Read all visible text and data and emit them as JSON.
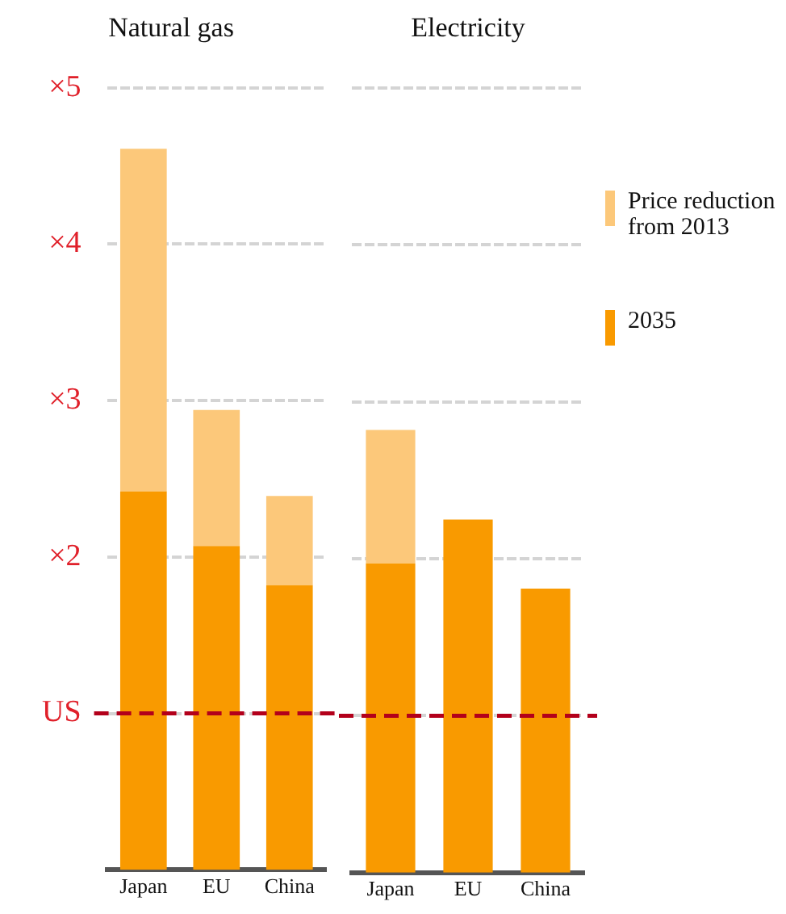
{
  "chart_data": [
    {
      "type": "bar",
      "title": "Natural gas",
      "categories": [
        "Japan",
        "EU",
        "China"
      ],
      "stacked": true,
      "series": [
        {
          "color": "#f99a00",
          "values": [
            2.42,
            2.07,
            1.82
          ]
        },
        {
          "color": "#fcc87a",
          "values": [
            2.19,
            0.87,
            0.57
          ]
        }
      ],
      "ylim": [
        0,
        5
      ],
      "yticks": [
        {
          "value": 1,
          "label": "US"
        },
        {
          "value": 2,
          "label": "×2"
        },
        {
          "value": 3,
          "label": "×3"
        },
        {
          "value": 4,
          "label": "×4"
        },
        {
          "value": 5,
          "label": "×5"
        }
      ],
      "grid": "y",
      "ref_lines": [
        {
          "axis": "y",
          "value": 1,
          "color": "#b3001b",
          "line_style": "dashed"
        }
      ]
    },
    {
      "type": "bar",
      "title": "Electricity",
      "categories": [
        "Japan",
        "EU",
        "China"
      ],
      "stacked": true,
      "series": [
        {
          "name": "2035",
          "color": "#f99a00",
          "values": [
            1.97,
            2.25,
            1.81
          ]
        },
        {
          "name": "Price reduction from 2013",
          "color": "#fcc87a",
          "values": [
            0.85,
            null,
            null
          ]
        }
      ],
      "ylim": [
        0,
        5
      ],
      "yticks": [
        1,
        2,
        3,
        4,
        5
      ],
      "tick_labels": "x",
      "grid": "y",
      "legend": "right",
      "ref_lines": [
        {
          "axis": "y",
          "value": 1,
          "color": "#b3001b",
          "line_style": "dashed"
        }
      ]
    }
  ]
}
